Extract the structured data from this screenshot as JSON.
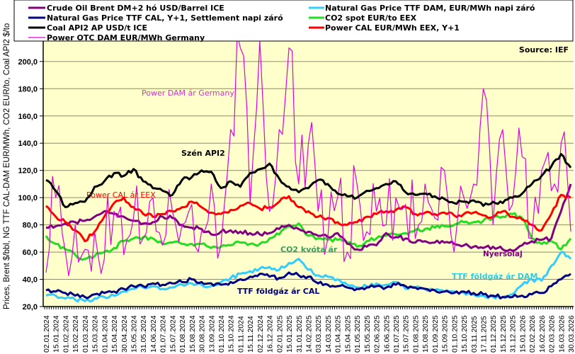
{
  "chart_data": {
    "type": "line",
    "title": "",
    "source": "Source:  IEF",
    "ylabel": "Prices, Brent $/bbl, NG TTF CAL-DAM EUR/MWh, CO2 EUR/to, Coal API2 $/to",
    "xlabel": "",
    "ylim": [
      20,
      215
    ],
    "yticks": [
      "20,0",
      "40,0",
      "60,0",
      "80,0",
      "100,0",
      "120,0",
      "140,0",
      "160,0",
      "180,0",
      "200,0"
    ],
    "ytick_values": [
      20,
      40,
      60,
      80,
      100,
      120,
      140,
      160,
      180,
      200
    ],
    "grid": true,
    "legend_position": "top",
    "x": [
      "02.01.2024",
      "15.01.2024",
      "01.02.2024",
      "15.02.2024",
      "01.03.2024",
      "15.03.2024",
      "01.04.2024",
      "15.04.2024",
      "30.04.2024",
      "15.05.2024",
      "31.05.2024",
      "14.06.2024",
      "01.07.2024",
      "15.07.2024",
      "01.08.2024",
      "15.08.2024",
      "30.08.2024",
      "13.09.2024",
      "01.10.2024",
      "15.10.2024",
      "01.11.2024",
      "15.11.2024",
      "02.12.2024",
      "16.12.2024",
      "02.01.2025",
      "15.01.2025",
      "31.01.2025",
      "14.02.2025",
      "03.03.2025",
      "14.03.2025",
      "01.04.2025",
      "15.04.2025",
      "01.05.2025",
      "15.05.2025",
      "02.06.2025",
      "16.06.2025",
      "01.07.2025",
      "15.07.2025",
      "01.08.2025",
      "15.08.2025",
      "01.09.2025",
      "15.09.2025",
      "01.10.2025",
      "15.10.2025",
      "03.11.2025",
      "17.11.2025",
      "01.12.2025",
      "15.12.2025",
      "31.12.2025",
      "15.01.2026",
      "02.02.2026",
      "16.02.2026",
      "02.03.2026",
      "16.03.2026",
      "30.03.2026"
    ],
    "series": [
      {
        "name": "Crude Oil Brent DM+2 hó USD/Barrel ICE",
        "color": "#800080",
        "width": 3,
        "values": [
          78,
          79,
          81,
          82,
          83,
          86,
          90,
          88,
          86,
          83,
          81,
          82,
          86,
          85,
          80,
          78,
          77,
          73,
          75,
          76,
          75,
          74,
          73,
          74,
          77,
          80,
          77,
          75,
          72,
          71,
          74,
          66,
          62,
          64,
          65,
          74,
          71,
          70,
          67,
          68,
          67,
          67,
          66,
          65,
          64,
          63,
          64,
          62,
          61,
          65,
          68,
          69,
          70,
          90,
          110
        ]
      },
      {
        "name": "Natural Gas Price TTF CAL, Y+1, Settlement napi záró",
        "color": "#000080",
        "width": 3,
        "values": [
          32,
          31,
          30,
          28,
          27,
          29,
          30,
          31,
          33,
          35,
          35,
          37,
          36,
          37,
          38,
          40,
          38,
          37,
          36,
          38,
          40,
          42,
          44,
          42,
          41,
          45,
          43,
          42,
          37,
          36,
          35,
          34,
          33,
          34,
          35,
          34,
          36,
          35,
          34,
          33,
          32,
          31,
          30,
          31,
          30,
          29,
          28,
          27,
          27,
          28,
          29,
          30,
          35,
          40,
          44
        ]
      },
      {
        "name": "Coal API2 AP USD/t ICE",
        "color": "#000000",
        "width": 3,
        "values": [
          113,
          105,
          93,
          96,
          97,
          108,
          112,
          118,
          116,
          121,
          112,
          107,
          105,
          102,
          113,
          115,
          120,
          119,
          107,
          112,
          108,
          118,
          121,
          125,
          114,
          108,
          104,
          107,
          113,
          110,
          103,
          101,
          100,
          105,
          107,
          110,
          112,
          104,
          102,
          103,
          101,
          99,
          96,
          97,
          98,
          94,
          97,
          96,
          100,
          103,
          110,
          116,
          123,
          132,
          122
        ]
      },
      {
        "name": "Power OTC DAM EUR/MWh Germany",
        "color": "#e000e0",
        "width": 1.2,
        "values": [
          45,
          100,
          60,
          80,
          62,
          75,
          55,
          90,
          58,
          85,
          70,
          100,
          65,
          90,
          80,
          95,
          75,
          110,
          65,
          150,
          210,
          95,
          215,
          90,
          150,
          210,
          110,
          140,
          90,
          70,
          100,
          60,
          110,
          75,
          90,
          80,
          100,
          95,
          70,
          110,
          85,
          120,
          60,
          100,
          110,
          180,
          80,
          150,
          95,
          130,
          70,
          120,
          105,
          140,
          75
        ]
      },
      {
        "name": "Natural Gas Price TTF DAM, EUR/MWh napi záró",
        "color": "#33ccff",
        "width": 3,
        "values": [
          28,
          28,
          26,
          25,
          24,
          26,
          27,
          28,
          31,
          33,
          34,
          35,
          33,
          34,
          36,
          37,
          36,
          35,
          38,
          41,
          44,
          46,
          48,
          49,
          47,
          52,
          55,
          47,
          43,
          42,
          40,
          36,
          34,
          35,
          37,
          36,
          38,
          33,
          34,
          33,
          32,
          31,
          31,
          30,
          29,
          28,
          27,
          27,
          29,
          36,
          40,
          39,
          50,
          60,
          55
        ]
      },
      {
        "name": "CO2 spot EUR/to EEX",
        "color": "#22dd22",
        "width": 3,
        "values": [
          72,
          66,
          62,
          58,
          55,
          57,
          60,
          63,
          68,
          70,
          71,
          70,
          66,
          67,
          66,
          66,
          66,
          63,
          64,
          65,
          67,
          66,
          66,
          70,
          73,
          79,
          81,
          72,
          70,
          69,
          69,
          67,
          64,
          68,
          70,
          72,
          73,
          74,
          76,
          77,
          78,
          79,
          80,
          82,
          82,
          83,
          85,
          86,
          88,
          85,
          70,
          66,
          68,
          62,
          70
        ]
      },
      {
        "name": "Power CAL EUR/MWh EEX, Y+1",
        "color": "#ff0000",
        "width": 3,
        "values": [
          94,
          86,
          82,
          76,
          68,
          75,
          86,
          96,
          100,
          93,
          88,
          86,
          88,
          90,
          93,
          97,
          93,
          89,
          88,
          91,
          94,
          96,
          92,
          93,
          97,
          101,
          93,
          90,
          86,
          85,
          82,
          80,
          82,
          86,
          88,
          90,
          91,
          93,
          88,
          89,
          88,
          89,
          87,
          88,
          89,
          87,
          86,
          90,
          86,
          84,
          80,
          76,
          88,
          102,
          100
        ]
      }
    ],
    "annotations": [
      {
        "text": "Power DAM  ár Germany",
        "color": "#cc33cc"
      },
      {
        "text": "Szén API2",
        "color": "#000000"
      },
      {
        "text": "Power CAL ár EEX",
        "color": "#ff0000"
      },
      {
        "text": "CO2 kvóta ár",
        "color": "#3c9d5a"
      },
      {
        "text": "Nyersolaj",
        "color": "#800080"
      },
      {
        "text": "TTF földgáz ár DAM",
        "color": "#33ccdd"
      },
      {
        "text": "TTF földgáz ár CAL",
        "color": "#000080"
      }
    ]
  },
  "colors": {
    "plot_bg": "#ffffcc",
    "grid": "#8c8c6c"
  }
}
